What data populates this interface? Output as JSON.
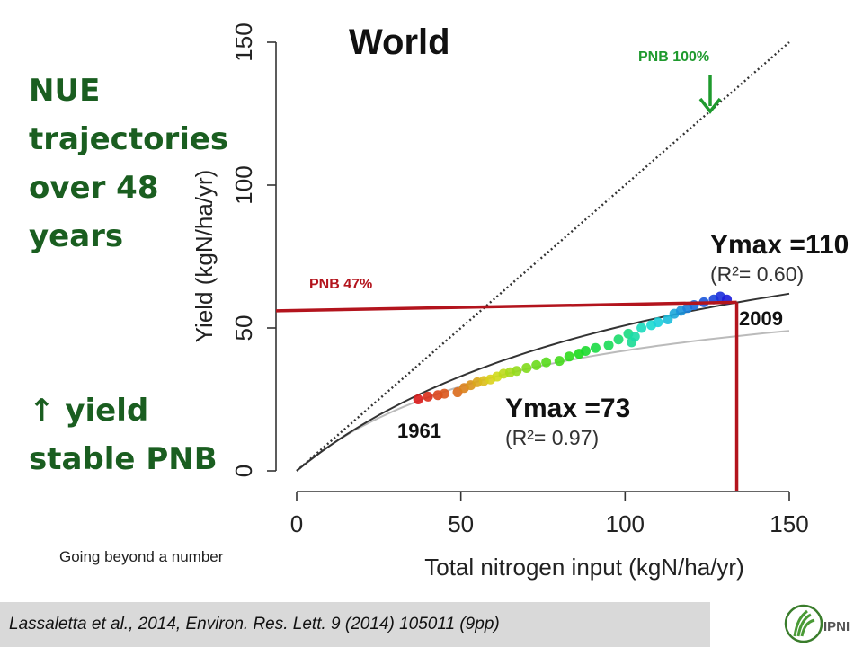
{
  "slide": {
    "heading_lines": [
      "NUE",
      "trajectories",
      "over 48",
      "years"
    ],
    "subtext_line1": "↑ yield",
    "subtext_line2": "stable PNB",
    "caption": "Going beyond a number",
    "citation": "Lassaletta et al., 2014, Environ. Res. Lett. 9 (2014) 105011 (9pp)",
    "logo_text": "IPNI",
    "logo_icon": "ipni-leaf-logo-icon"
  },
  "colors": {
    "heading": "#1a5e20",
    "pnb100": "#1f9a2e",
    "pnb47": "#b3141d",
    "guide": "#b3141d",
    "curve110": "#333333",
    "curve73": "#bbbbbb"
  },
  "chart_data": {
    "type": "scatter",
    "title": "World",
    "xlabel": "Total nitrogen input (kgN/ha/yr)",
    "ylabel": "Yield (kgN/ha/yr)",
    "xlim": [
      0,
      150
    ],
    "ylim": [
      0,
      150
    ],
    "xticks": [
      0,
      50,
      100,
      150
    ],
    "yticks": [
      0,
      50,
      100,
      150
    ],
    "grid": false,
    "start_label": "1961",
    "end_label": "2009",
    "points_x": [
      37,
      40,
      43,
      45,
      49,
      51,
      53,
      55,
      57,
      59,
      61,
      63,
      65,
      67,
      70,
      73,
      76,
      80,
      83,
      86,
      88,
      91,
      95,
      98,
      101,
      102,
      103,
      105,
      108,
      110,
      113,
      115,
      117,
      119,
      121,
      124,
      127,
      129,
      131
    ],
    "points_y": [
      25,
      26,
      26.5,
      27,
      27.5,
      29,
      30,
      31,
      31.5,
      32,
      33,
      34,
      34.5,
      35,
      36,
      37,
      38,
      38.5,
      40,
      41,
      42,
      43,
      44,
      46,
      48,
      45,
      47,
      50,
      51,
      52,
      53,
      55,
      56,
      57,
      58,
      59,
      60,
      61,
      60
    ],
    "series": [
      {
        "name": "Ymax =110",
        "r2": "(R²= 0.60)",
        "ymax": 110,
        "x": [
          0,
          150
        ],
        "y": [
          0,
          62
        ]
      },
      {
        "name": "Ymax =73",
        "r2": "(R²= 0.97)",
        "ymax": 73,
        "x": [
          0,
          150
        ],
        "y": [
          0,
          49
        ]
      },
      {
        "name": "PNB 100%",
        "x": [
          0,
          150
        ],
        "y": [
          0,
          150
        ]
      }
    ],
    "annotations": {
      "pnb47_label": "PNB 47%",
      "pnb100_label": "PNB 100%",
      "pnb47_y": 56,
      "pnb47_y_end": 59,
      "pnb47_x": 134
    }
  }
}
